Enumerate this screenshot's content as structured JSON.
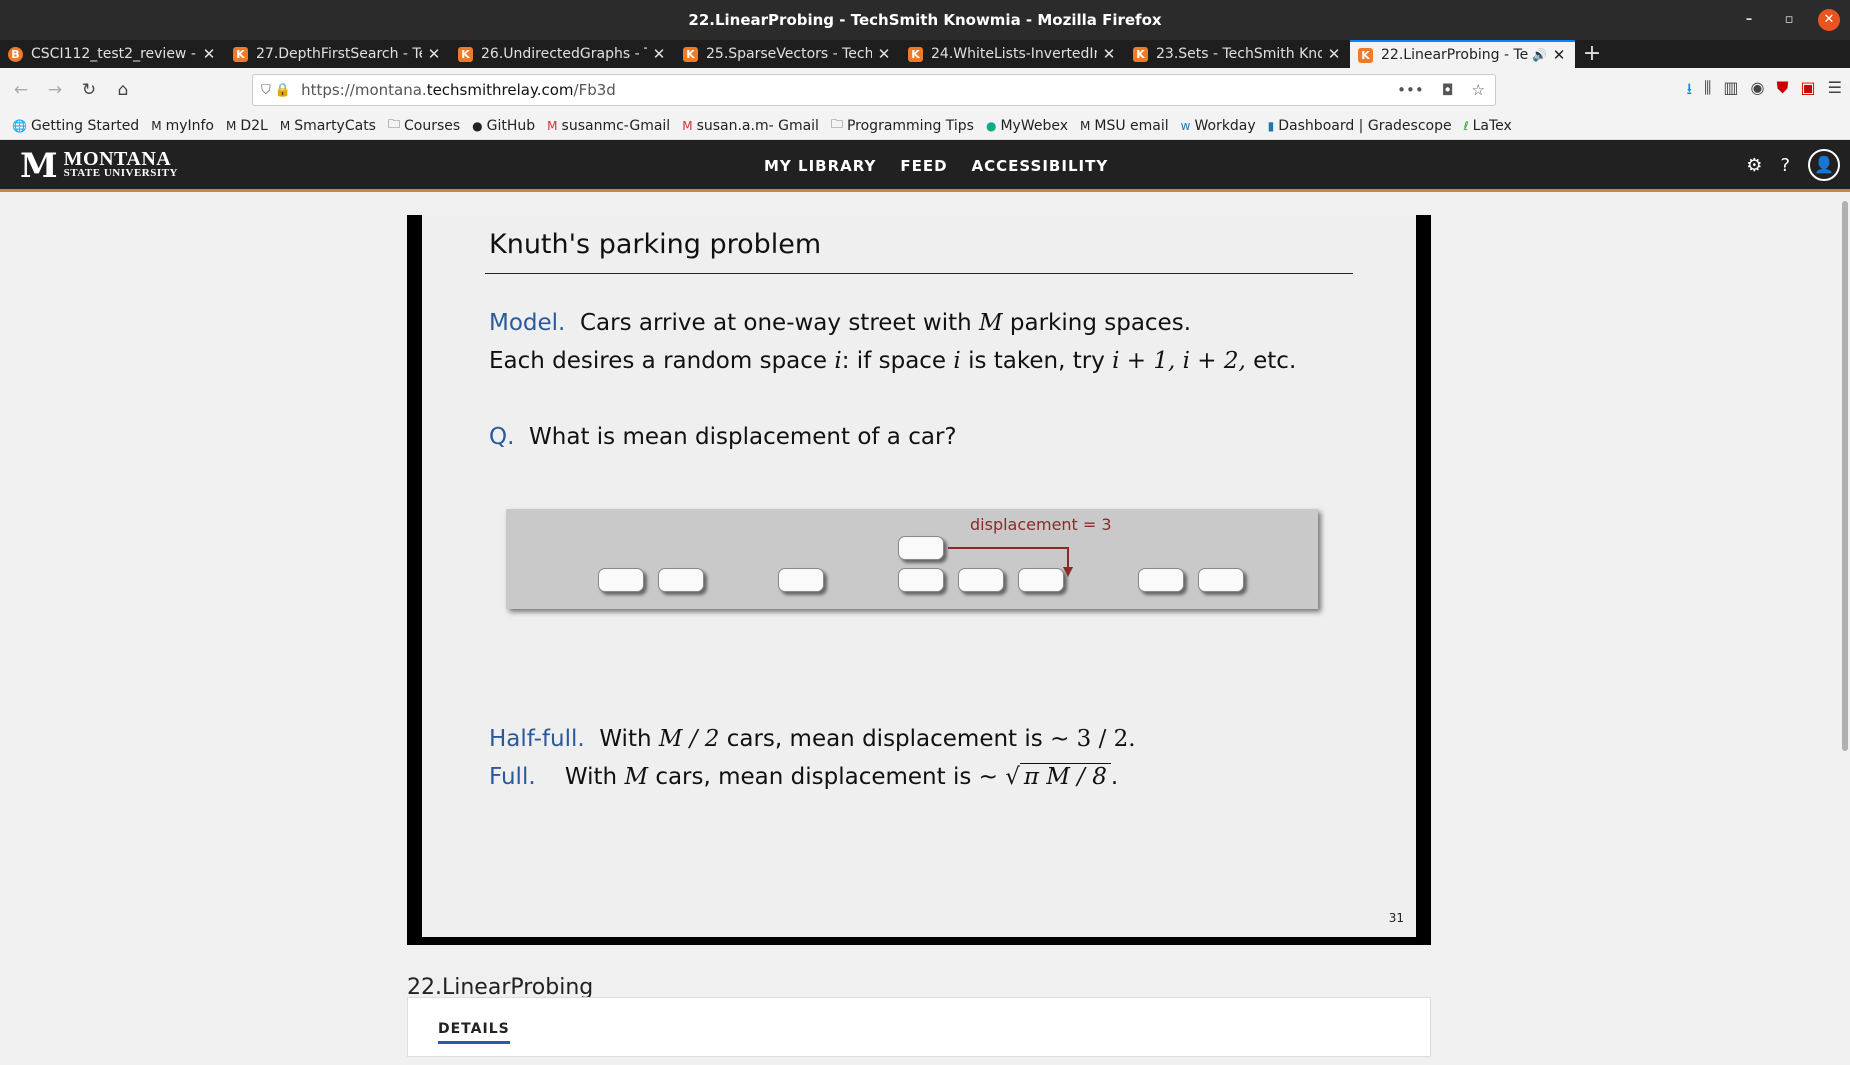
{
  "window": {
    "title": "22.LinearProbing - TechSmith Knowmia - Mozilla Firefox"
  },
  "tabs": [
    {
      "label": "CSCI112_test2_review - ",
      "fav": "B"
    },
    {
      "label": "27.DepthFirstSearch - Te",
      "fav": "K"
    },
    {
      "label": "26.UndirectedGraphs - Te",
      "fav": "K"
    },
    {
      "label": "25.SparseVectors - TechS",
      "fav": "K"
    },
    {
      "label": "24.WhiteLists-InvertedIn",
      "fav": "K"
    },
    {
      "label": "23.Sets - TechSmith Know",
      "fav": "K"
    },
    {
      "label": "22.LinearProbing - Te",
      "fav": "K"
    }
  ],
  "url": {
    "prefix": "https://montana.",
    "host": "techsmithrelay.com",
    "path": "/Fb3d"
  },
  "bookmarks": [
    "Getting Started",
    "myInfo",
    "D2L",
    "SmartyCats",
    "Courses",
    "GitHub",
    "susanmc-Gmail",
    "susan.a.m- Gmail",
    "Programming Tips",
    "MyWebex",
    "MSU email",
    "Workday",
    "Dashboard | Gradescope",
    "LaTex"
  ],
  "site": {
    "logo_line1": "MONTANA",
    "logo_line2": "STATE UNIVERSITY",
    "nav": [
      "MY LIBRARY",
      "FEED",
      "ACCESSIBILITY"
    ]
  },
  "slide": {
    "title": "Knuth's parking problem",
    "model_label": "Model.",
    "model_text1": "Cars arrive at one-way street with",
    "model_var": "M",
    "model_text2": "parking spaces.",
    "line2a": "Each desires a random space",
    "line2_i": "i",
    "line2b": ":  if space",
    "line2c": "is taken, try",
    "line2_expr": "i + 1, i + 2,",
    "line2d": "etc.",
    "q_label": "Q.",
    "q_text": "What is mean displacement of a car?",
    "displacement_label": "displacement = 3",
    "half_label": "Half-full.",
    "half_text1": "With",
    "half_expr": "M / 2",
    "half_text2": "cars, mean displacement is ~",
    "half_val": "3 / 2.",
    "full_label": "Full.",
    "full_text1": "With",
    "full_var": "M",
    "full_text2": "cars, mean displacement is ~",
    "full_val": "π M / 8",
    "full_end": ".",
    "page": "31"
  },
  "video": {
    "title": "22.LinearProbing",
    "details_tab": "DETAILS"
  }
}
